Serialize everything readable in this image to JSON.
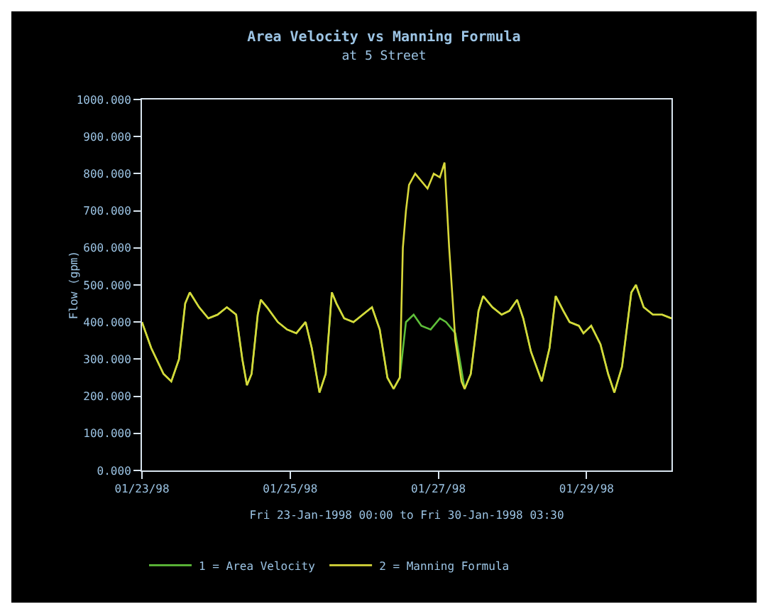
{
  "chart_data": {
    "type": "line",
    "title": "Area Velocity vs Manning Formula",
    "subtitle": "at 5 Street",
    "xlabel": "Fri 23-Jan-1998 00:00 to Fri 30-Jan-1998 03:30",
    "ylabel": "Flow (gpm)",
    "x": [
      "1998-01-23T00:00",
      "1998-01-23T03:00",
      "1998-01-23T07:00",
      "1998-01-23T09:30",
      "1998-01-23T12:00",
      "1998-01-23T14:00",
      "1998-01-23T15:30",
      "1998-01-23T18:30",
      "1998-01-23T21:30",
      "1998-01-24T00:30",
      "1998-01-24T03:30",
      "1998-01-24T06:30",
      "1998-01-24T08:30",
      "1998-01-24T10:00",
      "1998-01-24T11:30",
      "1998-01-24T13:30",
      "1998-01-24T14:30",
      "1998-01-24T16:30",
      "1998-01-24T20:00",
      "1998-01-24T23:00",
      "1998-01-25T02:00",
      "1998-01-25T05:00",
      "1998-01-25T07:00",
      "1998-01-25T09:30",
      "1998-01-25T11:30",
      "1998-01-25T13:30",
      "1998-01-25T15:00",
      "1998-01-25T17:30",
      "1998-01-25T20:30",
      "1998-01-25T23:30",
      "1998-01-26T02:30",
      "1998-01-26T05:00",
      "1998-01-26T07:30",
      "1998-01-26T09:30",
      "1998-01-26T11:30",
      "1998-01-26T13:30",
      "1998-01-26T16:00",
      "1998-01-26T18:30",
      "1998-01-26T21:30",
      "1998-01-27T00:30",
      "1998-01-27T02:30",
      "1998-01-27T05:30",
      "1998-01-27T08:30",
      "1998-01-27T10:30",
      "1998-01-27T13:00",
      "1998-01-27T14:30",
      "1998-01-27T17:30",
      "1998-01-27T20:30",
      "1998-01-27T23:00",
      "1998-01-28T01:30",
      "1998-01-28T03:30",
      "1998-01-28T06:00",
      "1998-01-28T09:30",
      "1998-01-28T12:00",
      "1998-01-28T14:00",
      "1998-01-28T16:30",
      "1998-01-28T18:30",
      "1998-01-28T21:30",
      "1998-01-28T23:00",
      "1998-01-29T01:30",
      "1998-01-29T04:30",
      "1998-01-29T07:00",
      "1998-01-29T09:00",
      "1998-01-29T11:30",
      "1998-01-29T14:30",
      "1998-01-29T16:00",
      "1998-01-29T18:30",
      "1998-01-29T21:30",
      "1998-01-30T00:30",
      "1998-01-30T03:30"
    ],
    "series": [
      {
        "name": "1 = Area Velocity",
        "color": "#5fbf3a",
        "values": [
          400,
          330,
          260,
          240,
          300,
          450,
          480,
          440,
          410,
          420,
          440,
          420,
          300,
          230,
          260,
          420,
          460,
          440,
          400,
          380,
          370,
          400,
          330,
          210,
          260,
          480,
          450,
          410,
          400,
          420,
          440,
          380,
          250,
          220,
          250,
          400,
          420,
          390,
          380,
          410,
          400,
          370,
          220,
          260,
          430,
          470,
          440,
          420,
          430,
          460,
          410,
          320,
          240,
          330,
          470,
          430,
          400,
          390,
          370,
          390,
          340,
          260,
          210,
          280,
          480,
          500,
          440,
          420,
          420,
          410
        ]
      },
      {
        "name": "2 = Manning Formula",
        "color": "#d8d83a",
        "x": [
          "1998-01-23T00:00",
          "1998-01-23T03:00",
          "1998-01-23T07:00",
          "1998-01-23T09:30",
          "1998-01-23T12:00",
          "1998-01-23T14:00",
          "1998-01-23T15:30",
          "1998-01-23T18:30",
          "1998-01-23T21:30",
          "1998-01-24T00:30",
          "1998-01-24T03:30",
          "1998-01-24T06:30",
          "1998-01-24T08:30",
          "1998-01-24T10:00",
          "1998-01-24T11:30",
          "1998-01-24T13:30",
          "1998-01-24T14:30",
          "1998-01-24T16:30",
          "1998-01-24T20:00",
          "1998-01-24T23:00",
          "1998-01-25T02:00",
          "1998-01-25T05:00",
          "1998-01-25T07:00",
          "1998-01-25T09:30",
          "1998-01-25T11:30",
          "1998-01-25T13:30",
          "1998-01-25T15:00",
          "1998-01-25T17:30",
          "1998-01-25T20:30",
          "1998-01-25T23:30",
          "1998-01-26T02:30",
          "1998-01-26T05:00",
          "1998-01-26T07:30",
          "1998-01-26T09:30",
          "1998-01-26T11:30",
          "1998-01-26T12:30",
          "1998-01-26T13:30",
          "1998-01-26T14:30",
          "1998-01-26T16:30",
          "1998-01-26T18:30",
          "1998-01-26T20:30",
          "1998-01-26T22:30",
          "1998-01-27T00:30",
          "1998-01-27T02:00",
          "1998-01-27T03:30",
          "1998-01-27T05:30",
          "1998-01-27T07:30",
          "1998-01-27T08:30",
          "1998-01-27T10:30",
          "1998-01-27T13:00",
          "1998-01-27T14:30",
          "1998-01-27T17:30",
          "1998-01-27T20:30",
          "1998-01-27T23:00",
          "1998-01-28T01:30",
          "1998-01-28T03:30",
          "1998-01-28T06:00",
          "1998-01-28T09:30",
          "1998-01-28T12:00",
          "1998-01-28T14:00",
          "1998-01-28T16:30",
          "1998-01-28T18:30",
          "1998-01-28T21:30",
          "1998-01-28T23:00",
          "1998-01-29T01:30",
          "1998-01-29T04:30",
          "1998-01-29T07:00",
          "1998-01-29T09:00",
          "1998-01-29T11:30",
          "1998-01-29T14:30",
          "1998-01-29T16:00",
          "1998-01-29T18:30",
          "1998-01-29T21:30",
          "1998-01-30T00:30",
          "1998-01-30T03:30"
        ],
        "values": [
          400,
          330,
          260,
          240,
          300,
          450,
          480,
          440,
          410,
          420,
          440,
          420,
          300,
          230,
          260,
          420,
          460,
          440,
          400,
          380,
          370,
          400,
          330,
          210,
          260,
          480,
          450,
          410,
          400,
          420,
          440,
          380,
          250,
          220,
          250,
          600,
          700,
          770,
          800,
          780,
          760,
          800,
          790,
          830,
          600,
          350,
          240,
          220,
          260,
          430,
          470,
          440,
          420,
          430,
          460,
          410,
          320,
          240,
          330,
          470,
          430,
          400,
          390,
          370,
          390,
          340,
          260,
          210,
          280,
          480,
          500,
          440,
          420,
          420,
          410
        ]
      }
    ],
    "xlim": [
      "1998-01-23T00:00",
      "1998-01-30T03:30"
    ],
    "xticks": [
      {
        "value": "1998-01-23",
        "label": "01/23/98"
      },
      {
        "value": "1998-01-25",
        "label": "01/25/98"
      },
      {
        "value": "1998-01-27",
        "label": "01/27/98"
      },
      {
        "value": "1998-01-29",
        "label": "01/29/98"
      }
    ],
    "ylim": [
      0,
      1000
    ],
    "yticks": [
      {
        "value": 0,
        "label": "0.000"
      },
      {
        "value": 100,
        "label": "100.000"
      },
      {
        "value": 200,
        "label": "200.000"
      },
      {
        "value": 300,
        "label": "300.000"
      },
      {
        "value": 400,
        "label": "400.000"
      },
      {
        "value": 500,
        "label": "500.000"
      },
      {
        "value": 600,
        "label": "600.000"
      },
      {
        "value": 700,
        "label": "700.000"
      },
      {
        "value": 800,
        "label": "800.000"
      },
      {
        "value": 900,
        "label": "900.000"
      },
      {
        "value": 1000,
        "label": "1000.000"
      }
    ],
    "grid": false,
    "legend": "bottom left",
    "marker": "none",
    "line_style": "solid"
  }
}
